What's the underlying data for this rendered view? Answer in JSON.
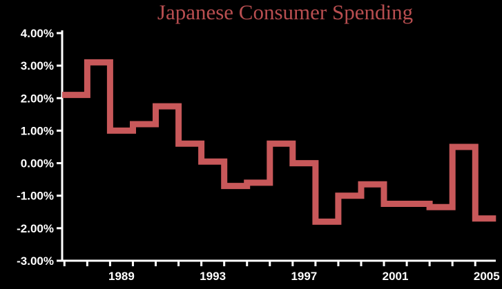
{
  "chart_data": {
    "type": "line",
    "step": true,
    "title": "Japanese Consumer Spending",
    "xlabel": "",
    "ylabel": "",
    "x": [
      1987,
      1988,
      1989,
      1990,
      1991,
      1992,
      1993,
      1994,
      1995,
      1996,
      1997,
      1998,
      1999,
      2000,
      2001,
      2002,
      2003,
      2004,
      2005
    ],
    "series": [
      {
        "values": [
          2.1,
          3.1,
          1.0,
          1.2,
          1.75,
          0.6,
          0.05,
          -0.7,
          -0.6,
          0.6,
          0.0,
          -1.8,
          -1.0,
          -0.65,
          -1.25,
          -1.25,
          -1.35,
          0.5,
          -1.7
        ]
      }
    ],
    "xlim": [
      1986.9,
      2005.9
    ],
    "x_ticks": [
      1989,
      1993,
      1997,
      2001,
      2005
    ],
    "x_tick_labels": [
      "1989",
      "1993",
      "1997",
      "2001",
      "2005"
    ],
    "ylim": [
      -3.0,
      4.0
    ],
    "y_ticks": [
      4.0,
      3.0,
      2.0,
      1.0,
      0.0,
      -1.0,
      -2.0,
      -3.0
    ],
    "y_tick_labels": [
      "4.00%",
      "3.00%",
      "2.00%",
      "1.00%",
      "0.00%",
      "-1.00%",
      "-2.00%",
      "-3.00%"
    ],
    "grid": false,
    "legend": "none",
    "colors": {
      "background": "#000000",
      "line": "#c8585a",
      "title": "#b84e50",
      "axis": "#ffffff",
      "text": "#ffffff"
    }
  }
}
